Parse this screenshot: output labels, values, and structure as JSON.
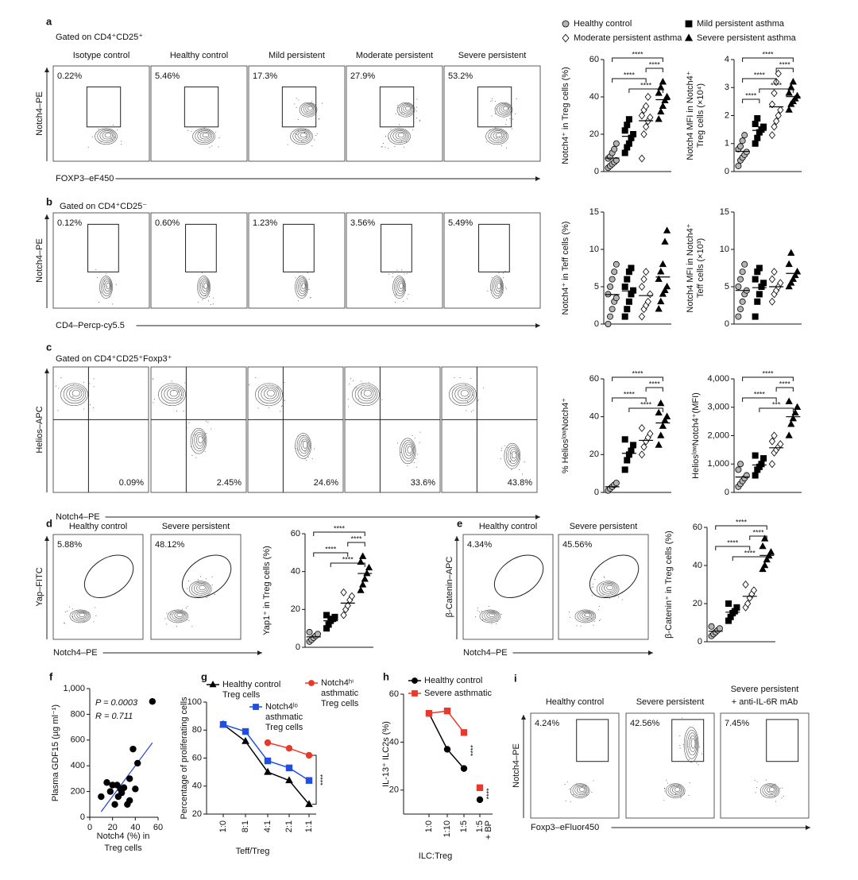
{
  "legend": [
    {
      "name": "Healthy control",
      "marker": "circle",
      "color": "#b4b4b4"
    },
    {
      "name": "Mild persistent asthma",
      "marker": "square",
      "color": "#000000"
    },
    {
      "name": "Moderate persistent asthma",
      "marker": "diamond",
      "color": "#ffffff"
    },
    {
      "name": "Severe persistent asthma",
      "marker": "triangle",
      "color": "#000000"
    }
  ],
  "a": {
    "letter": "a",
    "gate_label": "Gated on CD4⁺CD25⁺",
    "flow": {
      "gate": "rect",
      "y_label": "Notch4–PE",
      "x_label": "FOXP3–eF450",
      "plots": [
        {
          "title": "Isotype control",
          "pct": "0.22%"
        },
        {
          "title": "Healthy control",
          "pct": "5.46%"
        },
        {
          "title": "Mild persistent",
          "pct": "17.3%"
        },
        {
          "title": "Moderate persistent",
          "pct": "27.9%"
        },
        {
          "title": "Severe persistent",
          "pct": "53.2%"
        }
      ]
    },
    "dots": [
      {
        "y_label": [
          "Notch4⁺ in Treg cells (%)"
        ],
        "ylim": [
          0,
          60
        ],
        "yticks": [
          0,
          20,
          40,
          60
        ],
        "values": [
          [
            2,
            3,
            4,
            5,
            6,
            7,
            8,
            10,
            12,
            15
          ],
          [
            10,
            13,
            15,
            18,
            20,
            22,
            25,
            28
          ],
          [
            7,
            20,
            24,
            27,
            29,
            30,
            33,
            35,
            40
          ],
          [
            28,
            32,
            35,
            38,
            40,
            42,
            45,
            48
          ]
        ],
        "sig": [
          "****",
          "****",
          "****",
          "****"
        ]
      },
      {
        "y_label": [
          "Notch4 MFI in Notch4⁺",
          "Treg cells (×10⁴)"
        ],
        "ylim": [
          0,
          4
        ],
        "yticks": [
          0,
          1,
          2,
          3,
          4
        ],
        "values": [
          [
            0.2,
            0.4,
            0.5,
            0.6,
            0.7,
            0.8,
            0.9,
            1.1,
            1.3
          ],
          [
            1.0,
            1.2,
            1.4,
            1.5,
            1.6,
            1.7,
            1.9
          ],
          [
            1.3,
            1.6,
            1.8,
            2.0,
            2.2,
            2.4,
            2.8,
            3.2,
            3.5
          ],
          [
            2.2,
            2.4,
            2.5,
            2.6,
            2.7,
            2.8,
            3.0,
            3.2
          ]
        ],
        "sig": [
          "****",
          "****",
          "****",
          "****",
          "****"
        ]
      }
    ]
  },
  "b": {
    "letter": "b",
    "gate_label": "Gated on CD4⁺CD25⁻",
    "flow": {
      "gate": "rect",
      "y_label": "Notch4–PE",
      "x_label": "CD4–Percp-cy5.5",
      "plots": [
        {
          "pct": "0.12%"
        },
        {
          "pct": "0.60%"
        },
        {
          "pct": "1.23%"
        },
        {
          "pct": "3.56%"
        },
        {
          "pct": "5.49%"
        }
      ]
    },
    "dots": [
      {
        "y_label": [
          "Notch4⁺ in Teff cells (%)"
        ],
        "ylim": [
          0,
          15
        ],
        "yticks": [
          0,
          5,
          10,
          15
        ],
        "values": [
          [
            0,
            1,
            2,
            3,
            3.5,
            4,
            5,
            6,
            7,
            8
          ],
          [
            1,
            2,
            3,
            4,
            4.5,
            5,
            6,
            7,
            7.5
          ],
          [
            1,
            2,
            2.5,
            3,
            4,
            5,
            6,
            7
          ],
          [
            2,
            3,
            4,
            4.5,
            5,
            6,
            7,
            8,
            11,
            12.5
          ]
        ],
        "sig": []
      },
      {
        "y_label": [
          "Notch4 MFI in Notch4⁺",
          "Teff cells (×10³)"
        ],
        "ylim": [
          0,
          15
        ],
        "yticks": [
          0,
          5,
          10,
          15
        ],
        "values": [
          [
            1,
            2,
            3,
            4,
            4.5,
            5,
            6,
            7,
            8
          ],
          [
            1,
            3,
            4,
            5,
            5.5,
            6,
            7,
            7.5
          ],
          [
            3,
            4,
            4.5,
            5,
            5.5,
            6,
            7
          ],
          [
            5,
            5.5,
            6,
            6.5,
            7,
            8,
            9.5
          ]
        ],
        "sig": []
      }
    ]
  },
  "c": {
    "letter": "c",
    "gate_label": "Gated on CD4⁺CD25⁺Foxp3⁺",
    "flow": {
      "gate": "quad",
      "y_label": "Helios–APC",
      "x_label": "Notch4–PE",
      "plots": [
        {
          "pct": "0.09%"
        },
        {
          "pct": "2.45%"
        },
        {
          "pct": "24.6%"
        },
        {
          "pct": "33.6%"
        },
        {
          "pct": "43.8%"
        }
      ]
    },
    "dots": [
      {
        "y_label": [
          "% HeliosˡᵒʷNotch4⁺"
        ],
        "ylim": [
          0,
          60
        ],
        "yticks": [
          0,
          20,
          40,
          60
        ],
        "values": [
          [
            1,
            2,
            3,
            4,
            5
          ],
          [
            12,
            17,
            20,
            22,
            25,
            28
          ],
          [
            20,
            24,
            27,
            29,
            31,
            34
          ],
          [
            25,
            30,
            35,
            38,
            40,
            42,
            47
          ]
        ],
        "sig": [
          "****",
          "****",
          "****",
          "****"
        ]
      },
      {
        "y_label": [
          "HeliosˡᵒʷNotch4⁺(MFI)"
        ],
        "ylim": [
          0,
          4000
        ],
        "yticks": [
          0,
          {
            "value": 1000,
            "label": "1,000"
          },
          {
            "value": 2000,
            "label": "2,000"
          },
          {
            "value": 3000,
            "label": "3,000"
          },
          {
            "value": 4000,
            "label": "4,000"
          }
        ],
        "values": [
          [
            200,
            300,
            400,
            500,
            600,
            800,
            1000
          ],
          [
            600,
            800,
            900,
            1000,
            1200,
            1300
          ],
          [
            1000,
            1400,
            1500,
            1600,
            1700,
            1800,
            2000
          ],
          [
            2000,
            2400,
            2600,
            2800,
            3000,
            3200
          ]
        ],
        "sig": [
          "****",
          "****",
          "****",
          "***"
        ]
      }
    ]
  },
  "d": {
    "letter": "d",
    "flow": {
      "gate": "ellipse",
      "y_label": "Yap–FITC",
      "x_label": "Notch4–PE",
      "plots": [
        {
          "title": "Healthy control",
          "pct": "5.88%"
        },
        {
          "title": "Severe persistent",
          "pct": "48.12%"
        }
      ]
    },
    "dots": [
      {
        "y_label": [
          "Yap1⁺ in Treg cells (%)"
        ],
        "ylim": [
          0,
          60
        ],
        "yticks": [
          0,
          20,
          40,
          60
        ],
        "values": [
          [
            3,
            4,
            5,
            6,
            7,
            8
          ],
          [
            10,
            12,
            14,
            15,
            16,
            17
          ],
          [
            17,
            20,
            22,
            25,
            27,
            29
          ],
          [
            30,
            33,
            36,
            39,
            42,
            45,
            48
          ]
        ],
        "sig": [
          "****",
          "****",
          "****",
          "****"
        ]
      }
    ]
  },
  "e": {
    "letter": "e",
    "flow": {
      "gate": "ellipse",
      "y_label": "β-Catenin–APC",
      "x_label": "Notch4–PE",
      "plots": [
        {
          "title": "Healthy control",
          "pct": "4.34%"
        },
        {
          "title": "Severe persistent",
          "pct": "45.56%"
        }
      ]
    },
    "dots": [
      {
        "y_label": [
          "β-Catenin⁺ in Treg cells (%)"
        ],
        "ylim": [
          0,
          60
        ],
        "yticks": [
          0,
          20,
          40,
          60
        ],
        "values": [
          [
            3,
            4,
            5,
            6,
            7,
            8
          ],
          [
            11,
            13,
            15,
            16,
            18,
            20
          ],
          [
            18,
            20,
            23,
            25,
            27,
            30
          ],
          [
            38,
            40,
            43,
            45,
            47,
            50,
            54
          ]
        ],
        "sig": [
          "****",
          "****",
          "****",
          "****"
        ]
      }
    ]
  },
  "f": {
    "letter": "f",
    "type": "scatter",
    "y_label": "Plasma GDF15 (µg ml⁻¹)",
    "x_label": [
      "Notch4 (%) in",
      "Treg cells"
    ],
    "p_text": "P = 0.0003",
    "r_text": "R = 0.711",
    "color": "#1f3fd0",
    "x": [
      10,
      15,
      18,
      20,
      22,
      24,
      25,
      27,
      28,
      30,
      33,
      35,
      35,
      38,
      40,
      42,
      55
    ],
    "y": [
      160,
      270,
      200,
      250,
      100,
      250,
      160,
      220,
      190,
      230,
      100,
      130,
      300,
      530,
      220,
      420,
      900
    ],
    "xlim": [
      0,
      60
    ],
    "xticks": [
      0,
      20,
      40,
      60
    ],
    "ylim": [
      0,
      1000
    ],
    "yticks": [
      0,
      200,
      400,
      600,
      800,
      {
        "value": 1000,
        "label": "1,000"
      }
    ]
  },
  "g": {
    "letter": "g",
    "type": "line",
    "y_label": "Percentage of proliferating cells",
    "x_label": "Teff/Treg",
    "sig": "****",
    "categories": [
      "1:0",
      "8:1",
      "4:1",
      "2:1",
      "1:1"
    ],
    "ylim": [
      20,
      100
    ],
    "yticks": [
      20,
      40,
      60,
      80,
      100
    ],
    "series": [
      {
        "name": [
          "Healthy control",
          "Treg cells"
        ],
        "marker": "triangle",
        "color": "#000000",
        "values": [
          84,
          72,
          50,
          44,
          27
        ]
      },
      {
        "name": [
          "Notch4ˡᵒ",
          "asthmatic",
          "Treg cells"
        ],
        "marker": "square",
        "color": "#1f4fe0",
        "values": [
          84,
          79,
          58,
          53,
          44
        ]
      },
      {
        "name": [
          "Notch4ʰⁱ",
          "asthmatic",
          "Treg cells"
        ],
        "marker": "circle",
        "color": "#e8392a",
        "values": [
          null,
          null,
          71,
          67,
          62
        ]
      }
    ]
  },
  "h": {
    "letter": "h",
    "type": "line",
    "y_label": "IL-13⁺ ILC2s (%)",
    "x_label": "ILC:Treg",
    "bp": "+ BP",
    "sig": [
      "****",
      "****"
    ],
    "categories": [
      "1:0",
      "1:10",
      "1:5",
      "1:5"
    ],
    "ylim": [
      10,
      60
    ],
    "yticks": [
      20,
      40,
      60
    ],
    "series": [
      {
        "name": [
          "Healthy control"
        ],
        "marker": "circle",
        "color": "#000000",
        "values": [
          52,
          37,
          29,
          16
        ]
      },
      {
        "name": [
          "Severe asthmatic"
        ],
        "marker": "square",
        "color": "#e8392a",
        "values": [
          52,
          53,
          44,
          21
        ]
      }
    ]
  },
  "i": {
    "letter": "i",
    "flow": {
      "gate": "rect",
      "y_label": "Notch4–PE",
      "x_label": "Foxp3–eFluor450",
      "plots": [
        {
          "title": "Healthy control",
          "pct": "4.24%"
        },
        {
          "title": "Severe persistent",
          "pct": "42.56%"
        },
        {
          "title": [
            "Severe persistent",
            "+ anti-IL-6R mAb"
          ],
          "pct": "7.45%"
        }
      ]
    }
  }
}
